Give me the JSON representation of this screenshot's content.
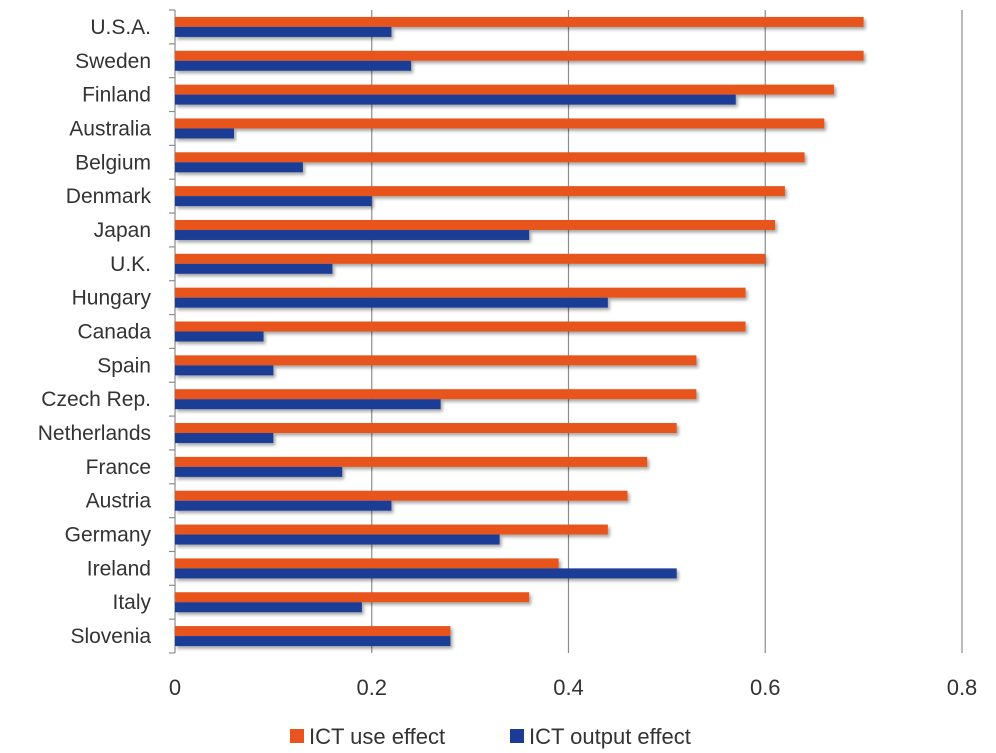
{
  "chart_data": {
    "type": "bar",
    "orientation": "horizontal",
    "categories": [
      "U.S.A.",
      "Sweden",
      "Finland",
      "Australia",
      "Belgium",
      "Denmark",
      "Japan",
      "U.K.",
      "Hungary",
      "Canada",
      "Spain",
      "Czech Rep.",
      "Netherlands",
      "France",
      "Austria",
      "Germany",
      "Ireland",
      "Italy",
      "Slovenia"
    ],
    "series": [
      {
        "name": "ICT use effect",
        "color": "#e8541e",
        "values": [
          0.7,
          0.7,
          0.67,
          0.66,
          0.64,
          0.62,
          0.61,
          0.6,
          0.58,
          0.58,
          0.53,
          0.53,
          0.51,
          0.48,
          0.46,
          0.44,
          0.39,
          0.36,
          0.28
        ]
      },
      {
        "name": "ICT output effect",
        "color": "#1a3c96",
        "values": [
          0.22,
          0.24,
          0.57,
          0.06,
          0.13,
          0.2,
          0.36,
          0.16,
          0.44,
          0.09,
          0.1,
          0.27,
          0.1,
          0.17,
          0.22,
          0.33,
          0.51,
          0.19,
          0.28
        ]
      }
    ],
    "xlim": [
      0,
      0.8
    ],
    "x_ticks": [
      "0",
      "0.2",
      "0.4",
      "0.6",
      "0.8"
    ],
    "x_tick_values": [
      0,
      0.2,
      0.4,
      0.6,
      0.8
    ],
    "grid": "vertical",
    "legend_position": "bottom"
  }
}
